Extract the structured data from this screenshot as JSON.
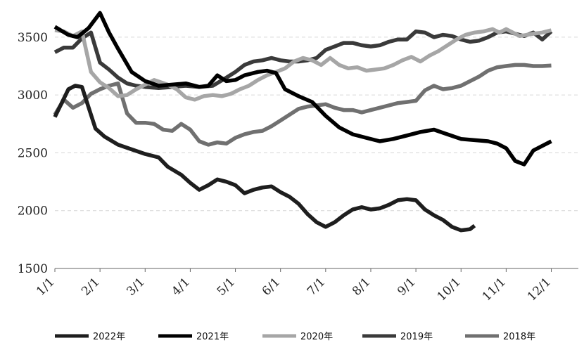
{
  "chart_data": {
    "type": "line",
    "title": "",
    "xlabel": "",
    "ylabel": "",
    "ylim": [
      1500,
      3700
    ],
    "yticks": [
      1500,
      2000,
      2500,
      3000,
      3500
    ],
    "x_domain": [
      0,
      11.6
    ],
    "xticks": [
      {
        "pos": 0,
        "label": "1/1"
      },
      {
        "pos": 1,
        "label": "2/1"
      },
      {
        "pos": 2,
        "label": "3/1"
      },
      {
        "pos": 3,
        "label": "4/1"
      },
      {
        "pos": 4,
        "label": "5/1"
      },
      {
        "pos": 5,
        "label": "6/1"
      },
      {
        "pos": 6,
        "label": "7/1"
      },
      {
        "pos": 7,
        "label": "8/1"
      },
      {
        "pos": 8,
        "label": "9/1"
      },
      {
        "pos": 9,
        "label": "10/1"
      },
      {
        "pos": 10,
        "label": "11/1"
      },
      {
        "pos": 11,
        "label": "12/1"
      }
    ],
    "grid": "horizontal",
    "legend_position": "bottom",
    "series": [
      {
        "name": "2022年",
        "color": "#1e1e1e",
        "points": [
          [
            0,
            2810
          ],
          [
            0.3,
            3050
          ],
          [
            0.45,
            3080
          ],
          [
            0.6,
            3070
          ],
          [
            0.75,
            2890
          ],
          [
            0.9,
            2710
          ],
          [
            1.1,
            2640
          ],
          [
            1.4,
            2570
          ],
          [
            1.7,
            2530
          ],
          [
            2.0,
            2490
          ],
          [
            2.3,
            2460
          ],
          [
            2.5,
            2380
          ],
          [
            2.8,
            2310
          ],
          [
            3.0,
            2240
          ],
          [
            3.2,
            2180
          ],
          [
            3.4,
            2220
          ],
          [
            3.6,
            2270
          ],
          [
            3.8,
            2250
          ],
          [
            4.0,
            2220
          ],
          [
            4.2,
            2150
          ],
          [
            4.4,
            2180
          ],
          [
            4.6,
            2200
          ],
          [
            4.8,
            2210
          ],
          [
            5.0,
            2160
          ],
          [
            5.2,
            2120
          ],
          [
            5.4,
            2060
          ],
          [
            5.6,
            1970
          ],
          [
            5.8,
            1900
          ],
          [
            6.0,
            1860
          ],
          [
            6.2,
            1900
          ],
          [
            6.4,
            1960
          ],
          [
            6.6,
            2010
          ],
          [
            6.8,
            2030
          ],
          [
            7.0,
            2010
          ],
          [
            7.2,
            2020
          ],
          [
            7.4,
            2050
          ],
          [
            7.6,
            2090
          ],
          [
            7.8,
            2100
          ],
          [
            8.0,
            2090
          ],
          [
            8.2,
            2010
          ],
          [
            8.4,
            1960
          ],
          [
            8.6,
            1920
          ],
          [
            8.8,
            1860
          ],
          [
            9.0,
            1830
          ],
          [
            9.2,
            1840
          ],
          [
            9.3,
            1870
          ]
        ]
      },
      {
        "name": "2021年",
        "color": "#000000",
        "points": [
          [
            0,
            3590
          ],
          [
            0.3,
            3520
          ],
          [
            0.5,
            3500
          ],
          [
            0.75,
            3580
          ],
          [
            1.0,
            3710
          ],
          [
            1.2,
            3540
          ],
          [
            1.4,
            3400
          ],
          [
            1.7,
            3200
          ],
          [
            2.0,
            3120
          ],
          [
            2.3,
            3080
          ],
          [
            2.6,
            3090
          ],
          [
            2.9,
            3100
          ],
          [
            3.2,
            3070
          ],
          [
            3.4,
            3080
          ],
          [
            3.6,
            3170
          ],
          [
            3.8,
            3120
          ],
          [
            4.0,
            3130
          ],
          [
            4.2,
            3170
          ],
          [
            4.5,
            3200
          ],
          [
            4.7,
            3210
          ],
          [
            4.9,
            3190
          ],
          [
            5.1,
            3050
          ],
          [
            5.4,
            2990
          ],
          [
            5.7,
            2940
          ],
          [
            6.0,
            2820
          ],
          [
            6.3,
            2720
          ],
          [
            6.6,
            2660
          ],
          [
            6.9,
            2630
          ],
          [
            7.2,
            2600
          ],
          [
            7.5,
            2620
          ],
          [
            7.8,
            2650
          ],
          [
            8.1,
            2680
          ],
          [
            8.4,
            2700
          ],
          [
            8.7,
            2660
          ],
          [
            9.0,
            2620
          ],
          [
            9.3,
            2610
          ],
          [
            9.6,
            2600
          ],
          [
            9.8,
            2580
          ],
          [
            10.0,
            2540
          ],
          [
            10.2,
            2430
          ],
          [
            10.4,
            2400
          ],
          [
            10.6,
            2520
          ],
          [
            10.8,
            2560
          ],
          [
            11.0,
            2600
          ]
        ]
      },
      {
        "name": "2020年",
        "color": "#a6a6a6",
        "points": [
          [
            0,
            3560
          ],
          [
            0.2,
            3550
          ],
          [
            0.4,
            3510
          ],
          [
            0.6,
            3550
          ],
          [
            0.8,
            3200
          ],
          [
            1.0,
            3110
          ],
          [
            1.2,
            3060
          ],
          [
            1.4,
            2990
          ],
          [
            1.6,
            3000
          ],
          [
            1.8,
            3050
          ],
          [
            2.0,
            3090
          ],
          [
            2.2,
            3130
          ],
          [
            2.5,
            3090
          ],
          [
            2.7,
            3050
          ],
          [
            2.9,
            2980
          ],
          [
            3.1,
            2960
          ],
          [
            3.3,
            2990
          ],
          [
            3.5,
            3000
          ],
          [
            3.7,
            2990
          ],
          [
            3.9,
            3010
          ],
          [
            4.1,
            3050
          ],
          [
            4.3,
            3080
          ],
          [
            4.5,
            3130
          ],
          [
            4.7,
            3170
          ],
          [
            4.9,
            3200
          ],
          [
            5.1,
            3230
          ],
          [
            5.3,
            3290
          ],
          [
            5.5,
            3320
          ],
          [
            5.7,
            3300
          ],
          [
            5.9,
            3260
          ],
          [
            6.1,
            3320
          ],
          [
            6.3,
            3260
          ],
          [
            6.5,
            3230
          ],
          [
            6.7,
            3240
          ],
          [
            6.9,
            3210
          ],
          [
            7.1,
            3220
          ],
          [
            7.3,
            3230
          ],
          [
            7.5,
            3260
          ],
          [
            7.7,
            3300
          ],
          [
            7.9,
            3330
          ],
          [
            8.1,
            3290
          ],
          [
            8.3,
            3340
          ],
          [
            8.5,
            3380
          ],
          [
            8.7,
            3430
          ],
          [
            8.9,
            3480
          ],
          [
            9.1,
            3520
          ],
          [
            9.3,
            3540
          ],
          [
            9.5,
            3550
          ],
          [
            9.7,
            3570
          ],
          [
            9.85,
            3540
          ],
          [
            10.0,
            3570
          ],
          [
            10.3,
            3510
          ],
          [
            10.6,
            3530
          ],
          [
            10.8,
            3540
          ],
          [
            11.0,
            3560
          ]
        ]
      },
      {
        "name": "2019年",
        "color": "#3a3a3a",
        "points": [
          [
            0,
            3370
          ],
          [
            0.2,
            3410
          ],
          [
            0.4,
            3410
          ],
          [
            0.6,
            3490
          ],
          [
            0.8,
            3540
          ],
          [
            1.0,
            3280
          ],
          [
            1.2,
            3220
          ],
          [
            1.4,
            3150
          ],
          [
            1.6,
            3100
          ],
          [
            1.8,
            3080
          ],
          [
            2.0,
            3070
          ],
          [
            2.3,
            3060
          ],
          [
            2.6,
            3070
          ],
          [
            2.9,
            3080
          ],
          [
            3.2,
            3070
          ],
          [
            3.5,
            3080
          ],
          [
            3.8,
            3150
          ],
          [
            4.0,
            3200
          ],
          [
            4.2,
            3260
          ],
          [
            4.4,
            3290
          ],
          [
            4.6,
            3300
          ],
          [
            4.8,
            3320
          ],
          [
            5.0,
            3300
          ],
          [
            5.2,
            3290
          ],
          [
            5.4,
            3290
          ],
          [
            5.6,
            3300
          ],
          [
            5.8,
            3320
          ],
          [
            6.0,
            3390
          ],
          [
            6.2,
            3420
          ],
          [
            6.4,
            3450
          ],
          [
            6.6,
            3450
          ],
          [
            6.8,
            3430
          ],
          [
            7.0,
            3420
          ],
          [
            7.2,
            3430
          ],
          [
            7.4,
            3460
          ],
          [
            7.6,
            3480
          ],
          [
            7.8,
            3480
          ],
          [
            8.0,
            3550
          ],
          [
            8.2,
            3540
          ],
          [
            8.4,
            3500
          ],
          [
            8.6,
            3520
          ],
          [
            8.8,
            3510
          ],
          [
            9.0,
            3480
          ],
          [
            9.2,
            3460
          ],
          [
            9.4,
            3470
          ],
          [
            9.6,
            3500
          ],
          [
            9.8,
            3540
          ],
          [
            10.0,
            3550
          ],
          [
            10.2,
            3530
          ],
          [
            10.4,
            3510
          ],
          [
            10.6,
            3540
          ],
          [
            10.8,
            3480
          ],
          [
            11.0,
            3550
          ]
        ]
      },
      {
        "name": "2018年",
        "color": "#707070",
        "points": [
          [
            0,
            2830
          ],
          [
            0.2,
            2960
          ],
          [
            0.4,
            2890
          ],
          [
            0.6,
            2930
          ],
          [
            0.8,
            3010
          ],
          [
            1.0,
            3050
          ],
          [
            1.2,
            3080
          ],
          [
            1.4,
            3100
          ],
          [
            1.6,
            2840
          ],
          [
            1.8,
            2760
          ],
          [
            2.0,
            2760
          ],
          [
            2.2,
            2750
          ],
          [
            2.4,
            2700
          ],
          [
            2.6,
            2690
          ],
          [
            2.8,
            2750
          ],
          [
            3.0,
            2700
          ],
          [
            3.2,
            2600
          ],
          [
            3.4,
            2570
          ],
          [
            3.6,
            2590
          ],
          [
            3.8,
            2580
          ],
          [
            4.0,
            2630
          ],
          [
            4.2,
            2660
          ],
          [
            4.4,
            2680
          ],
          [
            4.6,
            2690
          ],
          [
            4.8,
            2730
          ],
          [
            5.0,
            2780
          ],
          [
            5.2,
            2830
          ],
          [
            5.4,
            2880
          ],
          [
            5.6,
            2900
          ],
          [
            5.8,
            2910
          ],
          [
            6.0,
            2920
          ],
          [
            6.2,
            2890
          ],
          [
            6.4,
            2870
          ],
          [
            6.6,
            2870
          ],
          [
            6.8,
            2850
          ],
          [
            7.0,
            2870
          ],
          [
            7.2,
            2890
          ],
          [
            7.4,
            2910
          ],
          [
            7.6,
            2930
          ],
          [
            7.8,
            2940
          ],
          [
            8.0,
            2950
          ],
          [
            8.2,
            3040
          ],
          [
            8.4,
            3080
          ],
          [
            8.6,
            3050
          ],
          [
            8.8,
            3060
          ],
          [
            9.0,
            3080
          ],
          [
            9.2,
            3120
          ],
          [
            9.4,
            3160
          ],
          [
            9.6,
            3210
          ],
          [
            9.8,
            3240
          ],
          [
            10.0,
            3250
          ],
          [
            10.2,
            3260
          ],
          [
            10.4,
            3260
          ],
          [
            10.6,
            3250
          ],
          [
            10.8,
            3250
          ],
          [
            11.0,
            3255
          ]
        ]
      }
    ]
  }
}
